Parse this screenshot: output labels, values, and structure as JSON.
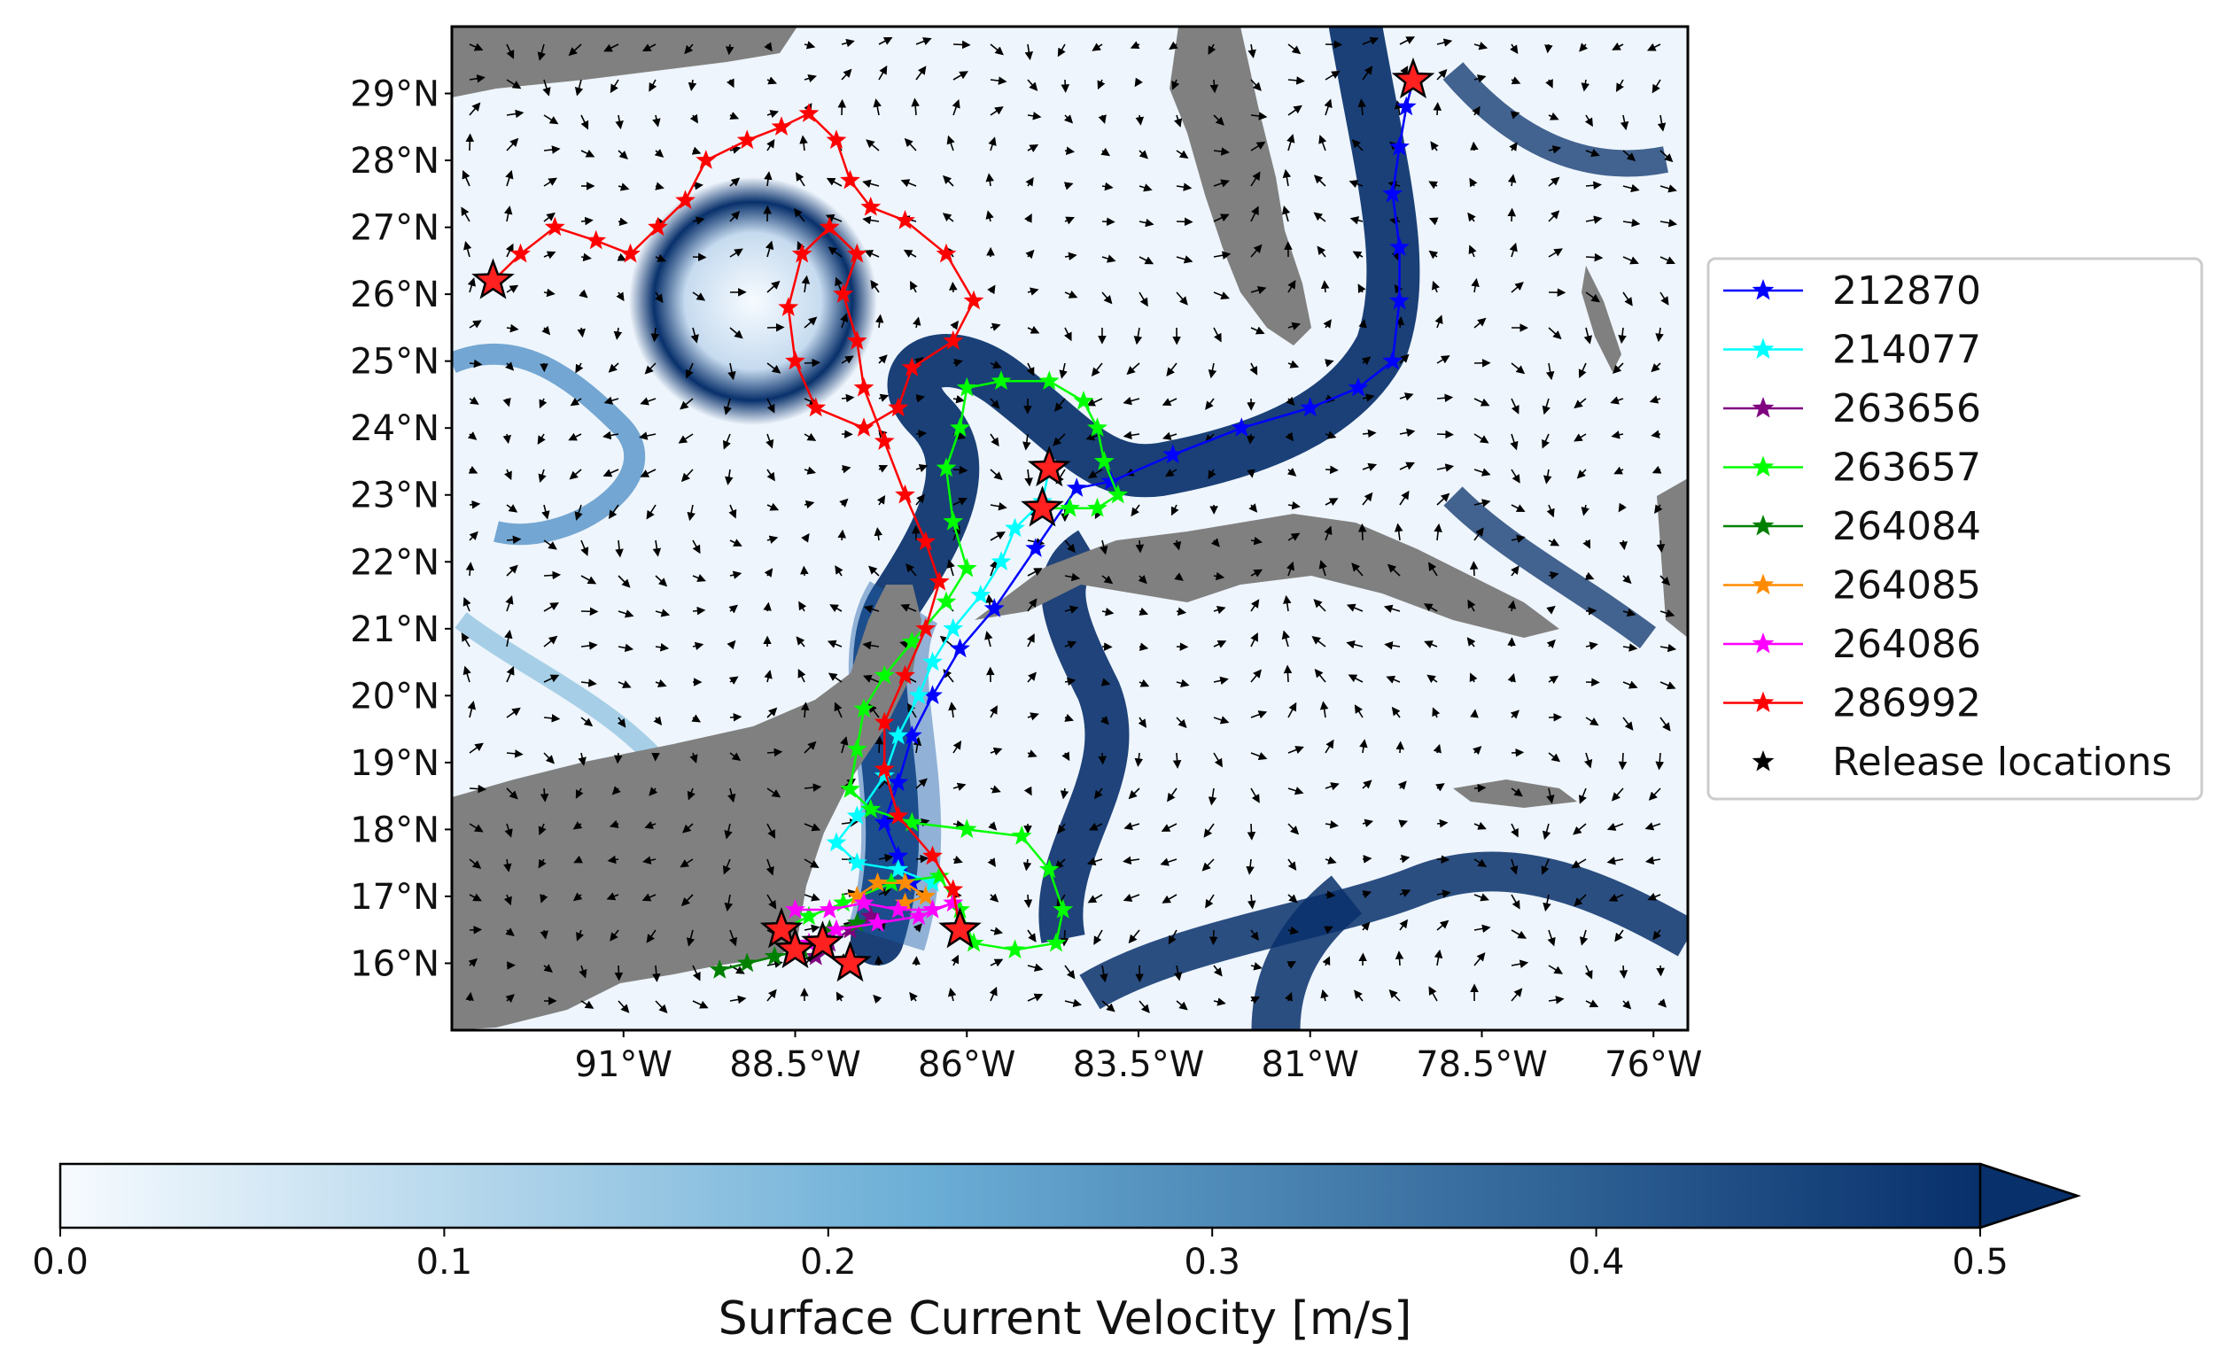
{
  "map": {
    "lat_range": [
      15,
      30
    ],
    "lon_range": [
      -93.5,
      -75.5
    ],
    "lat_ticks": [
      {
        "value": 16,
        "label": "16°N"
      },
      {
        "value": 17,
        "label": "17°N"
      },
      {
        "value": 18,
        "label": "18°N"
      },
      {
        "value": 19,
        "label": "19°N"
      },
      {
        "value": 20,
        "label": "20°N"
      },
      {
        "value": 21,
        "label": "21°N"
      },
      {
        "value": 22,
        "label": "22°N"
      },
      {
        "value": 23,
        "label": "23°N"
      },
      {
        "value": 24,
        "label": "24°N"
      },
      {
        "value": 25,
        "label": "25°N"
      },
      {
        "value": 26,
        "label": "26°N"
      },
      {
        "value": 27,
        "label": "27°N"
      },
      {
        "value": 28,
        "label": "28°N"
      },
      {
        "value": 29,
        "label": "29°N"
      }
    ],
    "lon_ticks": [
      {
        "value": -91,
        "label": "91°W"
      },
      {
        "value": -88.5,
        "label": "88.5°W"
      },
      {
        "value": -86,
        "label": "86°W"
      },
      {
        "value": -83.5,
        "label": "83.5°W"
      },
      {
        "value": -81,
        "label": "81°W"
      },
      {
        "value": -78.5,
        "label": "78.5°W"
      },
      {
        "value": -76,
        "label": "76°W"
      }
    ],
    "land_color": "#808080",
    "arrow_color": "#000000",
    "release_locations": [
      {
        "lon": -92.9,
        "lat": 26.2
      },
      {
        "lon": -79.5,
        "lat": 29.2
      },
      {
        "lon": -84.8,
        "lat": 23.4
      },
      {
        "lon": -84.9,
        "lat": 22.8
      },
      {
        "lon": -88.7,
        "lat": 16.5
      },
      {
        "lon": -88.5,
        "lat": 16.2
      },
      {
        "lon": -88.1,
        "lat": 16.3
      },
      {
        "lon": -87.7,
        "lat": 16.0
      },
      {
        "lon": -86.1,
        "lat": 16.5
      }
    ]
  },
  "legend": {
    "entries": [
      {
        "id": "212870",
        "label": "212870",
        "color": "#0000ff"
      },
      {
        "id": "214077",
        "label": "214077",
        "color": "#00ffff"
      },
      {
        "id": "263656",
        "label": "263656",
        "color": "#800080"
      },
      {
        "id": "263657",
        "label": "263657",
        "color": "#00ff00"
      },
      {
        "id": "264084",
        "label": "264084",
        "color": "#008000"
      },
      {
        "id": "264085",
        "label": "264085",
        "color": "#ff8c00"
      },
      {
        "id": "264086",
        "label": "264086",
        "color": "#ff00ff"
      },
      {
        "id": "286992",
        "label": "286992",
        "color": "#ff0000"
      }
    ],
    "release_label": "Release locations"
  },
  "trajectories": [
    {
      "id": "212870",
      "color": "#0000ff",
      "points": [
        [
          -79.5,
          29.2
        ],
        [
          -79.6,
          28.8
        ],
        [
          -79.7,
          28.2
        ],
        [
          -79.8,
          27.5
        ],
        [
          -79.7,
          26.7
        ],
        [
          -79.7,
          25.9
        ],
        [
          -79.8,
          25.0
        ],
        [
          -80.3,
          24.6
        ],
        [
          -81.0,
          24.3
        ],
        [
          -82.0,
          24.0
        ],
        [
          -83.0,
          23.6
        ],
        [
          -83.9,
          23.2
        ],
        [
          -84.4,
          23.1
        ],
        [
          -85.0,
          22.2
        ],
        [
          -85.6,
          21.3
        ],
        [
          -86.1,
          20.7
        ],
        [
          -86.5,
          20.0
        ],
        [
          -86.8,
          19.4
        ],
        [
          -87.0,
          18.7
        ],
        [
          -87.2,
          18.1
        ],
        [
          -87.0,
          17.6
        ],
        [
          -86.8,
          17.2
        ]
      ]
    },
    {
      "id": "214077",
      "color": "#00ffff",
      "points": [
        [
          -84.8,
          23.4
        ],
        [
          -84.9,
          22.9
        ],
        [
          -85.3,
          22.5
        ],
        [
          -85.5,
          22.0
        ],
        [
          -85.8,
          21.5
        ],
        [
          -86.2,
          21.0
        ],
        [
          -86.5,
          20.5
        ],
        [
          -86.7,
          20.0
        ],
        [
          -87.0,
          19.4
        ],
        [
          -87.2,
          18.8
        ],
        [
          -87.6,
          18.2
        ],
        [
          -87.9,
          17.8
        ],
        [
          -87.6,
          17.5
        ],
        [
          -87.0,
          17.4
        ],
        [
          -86.5,
          17.2
        ]
      ]
    },
    {
      "id": "263656",
      "color": "#800080",
      "points": [
        [
          -88.2,
          16.1
        ],
        [
          -88.0,
          16.3
        ],
        [
          -87.7,
          16.5
        ],
        [
          -87.4,
          16.7
        ]
      ]
    },
    {
      "id": "263657",
      "color": "#00ff00",
      "points": [
        [
          -84.9,
          22.8
        ],
        [
          -84.5,
          22.8
        ],
        [
          -84.1,
          22.8
        ],
        [
          -83.8,
          23.0
        ],
        [
          -84.0,
          23.5
        ],
        [
          -84.1,
          24.0
        ],
        [
          -84.3,
          24.4
        ],
        [
          -84.8,
          24.7
        ],
        [
          -85.5,
          24.7
        ],
        [
          -86.0,
          24.6
        ],
        [
          -86.1,
          24.0
        ],
        [
          -86.3,
          23.4
        ],
        [
          -86.2,
          22.6
        ],
        [
          -86.0,
          21.9
        ],
        [
          -86.3,
          21.4
        ],
        [
          -86.8,
          20.8
        ],
        [
          -87.2,
          20.3
        ],
        [
          -87.5,
          19.8
        ],
        [
          -87.6,
          19.2
        ],
        [
          -87.7,
          18.6
        ],
        [
          -87.4,
          18.3
        ],
        [
          -86.8,
          18.1
        ],
        [
          -86.0,
          18.0
        ],
        [
          -85.2,
          17.9
        ],
        [
          -84.8,
          17.4
        ],
        [
          -84.6,
          16.8
        ],
        [
          -84.7,
          16.3
        ],
        [
          -85.3,
          16.2
        ],
        [
          -85.9,
          16.3
        ],
        [
          -86.1,
          16.8
        ],
        [
          -86.4,
          17.3
        ],
        [
          -87.1,
          17.2
        ],
        [
          -87.8,
          16.9
        ],
        [
          -88.3,
          16.7
        ],
        [
          -88.7,
          16.5
        ]
      ]
    },
    {
      "id": "264084",
      "color": "#008000",
      "points": [
        [
          -89.6,
          15.9
        ],
        [
          -89.2,
          16.0
        ],
        [
          -88.8,
          16.1
        ],
        [
          -88.4,
          16.2
        ],
        [
          -88.0,
          16.5
        ],
        [
          -87.6,
          16.6
        ]
      ]
    },
    {
      "id": "264085",
      "color": "#ff8c00",
      "points": [
        [
          -87.6,
          17.0
        ],
        [
          -87.3,
          17.2
        ],
        [
          -86.9,
          17.2
        ],
        [
          -86.6,
          17.0
        ],
        [
          -86.9,
          16.9
        ]
      ]
    },
    {
      "id": "264086",
      "color": "#ff00ff",
      "points": [
        [
          -88.5,
          16.8
        ],
        [
          -88.0,
          16.8
        ],
        [
          -87.5,
          16.9
        ],
        [
          -87.0,
          16.8
        ],
        [
          -86.5,
          16.8
        ],
        [
          -86.2,
          16.9
        ],
        [
          -86.7,
          16.7
        ],
        [
          -87.3,
          16.6
        ],
        [
          -87.9,
          16.5
        ],
        [
          -88.3,
          16.3
        ]
      ]
    },
    {
      "id": "286992",
      "color": "#ff0000",
      "points": [
        [
          -92.9,
          26.2
        ],
        [
          -92.5,
          26.6
        ],
        [
          -92.0,
          27.0
        ],
        [
          -91.4,
          26.8
        ],
        [
          -90.9,
          26.6
        ],
        [
          -90.5,
          27.0
        ],
        [
          -90.1,
          27.4
        ],
        [
          -89.8,
          28.0
        ],
        [
          -89.2,
          28.3
        ],
        [
          -88.7,
          28.5
        ],
        [
          -88.3,
          28.7
        ],
        [
          -87.9,
          28.3
        ],
        [
          -87.7,
          27.7
        ],
        [
          -87.4,
          27.3
        ],
        [
          -86.9,
          27.1
        ],
        [
          -86.3,
          26.6
        ],
        [
          -85.9,
          25.9
        ],
        [
          -86.2,
          25.3
        ],
        [
          -86.8,
          24.9
        ],
        [
          -87.0,
          24.3
        ],
        [
          -87.5,
          24.0
        ],
        [
          -88.2,
          24.3
        ],
        [
          -88.5,
          25.0
        ],
        [
          -88.6,
          25.8
        ],
        [
          -88.4,
          26.6
        ],
        [
          -88.0,
          27.0
        ],
        [
          -87.6,
          26.6
        ],
        [
          -87.8,
          26.0
        ],
        [
          -87.6,
          25.3
        ],
        [
          -87.5,
          24.6
        ],
        [
          -87.2,
          23.8
        ],
        [
          -86.9,
          23.0
        ],
        [
          -86.6,
          22.3
        ],
        [
          -86.4,
          21.7
        ],
        [
          -86.6,
          21.0
        ],
        [
          -86.9,
          20.3
        ],
        [
          -87.2,
          19.6
        ],
        [
          -87.2,
          18.9
        ],
        [
          -87.0,
          18.2
        ],
        [
          -86.5,
          17.6
        ],
        [
          -86.2,
          17.1
        ],
        [
          -86.1,
          16.5
        ]
      ]
    }
  ],
  "colorbar": {
    "title": "Surface Current Velocity [m/s]",
    "min": 0.0,
    "max": 0.5,
    "extend": "max",
    "color_low": "#f7fbff",
    "color_mid": "#6baed6",
    "color_high": "#08306b",
    "ticks": [
      {
        "value": 0.0,
        "label": "0.0"
      },
      {
        "value": 0.1,
        "label": "0.1"
      },
      {
        "value": 0.2,
        "label": "0.2"
      },
      {
        "value": 0.3,
        "label": "0.3"
      },
      {
        "value": 0.4,
        "label": "0.4"
      },
      {
        "value": 0.5,
        "label": "0.5"
      }
    ]
  }
}
